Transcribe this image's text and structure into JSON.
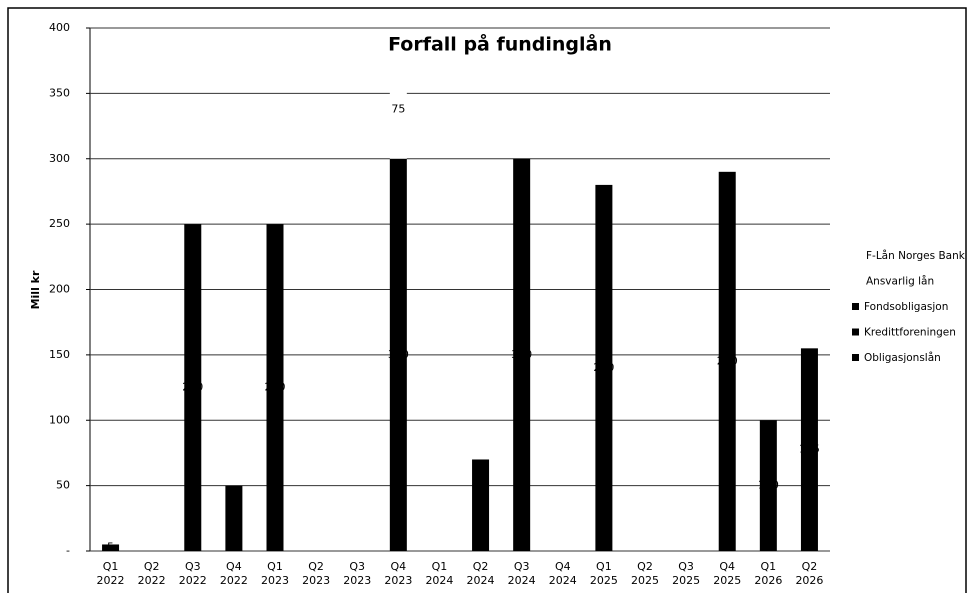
{
  "chart_data": {
    "type": "bar",
    "stacked": true,
    "title": "Forfall på fundinglån",
    "y_label": "Mill kr",
    "categories": [
      "Q1 2022",
      "Q2 2022",
      "Q3 2022",
      "Q4 2022",
      "Q1 2023",
      "Q2 2023",
      "Q3 2023",
      "Q4 2023",
      "Q1 2024",
      "Q2 2024",
      "Q3 2024",
      "Q4 2024",
      "Q1 2025",
      "Q2 2025",
      "Q3 2025",
      "Q4 2025",
      "Q1 2026",
      "Q2 2026"
    ],
    "series": [
      {
        "name": "F-Lån Norges Bank",
        "color": "#ffffff",
        "values": [
          null,
          null,
          null,
          null,
          null,
          null,
          null,
          75,
          null,
          null,
          null,
          null,
          null,
          null,
          null,
          null,
          null,
          null
        ]
      },
      {
        "name": "Ansvarlig lån",
        "color": "#ffffff",
        "values": [
          null,
          null,
          null,
          null,
          null,
          null,
          null,
          null,
          null,
          null,
          null,
          null,
          null,
          null,
          null,
          null,
          null,
          null
        ]
      },
      {
        "name": "Fondsobligasjon",
        "color": "#000000",
        "values": [
          null,
          null,
          null,
          null,
          null,
          null,
          null,
          null,
          null,
          null,
          null,
          null,
          null,
          null,
          null,
          null,
          null,
          null
        ]
      },
      {
        "name": "Kredittforeningen",
        "color": "#000000",
        "values": [
          null,
          null,
          null,
          null,
          null,
          null,
          null,
          null,
          null,
          null,
          null,
          null,
          null,
          null,
          null,
          null,
          null,
          null
        ]
      },
      {
        "name": "Obligasjonslån",
        "color": "#000000",
        "values": [
          5,
          null,
          250,
          50,
          250,
          null,
          null,
          300,
          null,
          70,
          300,
          null,
          280,
          null,
          null,
          290,
          100,
          155
        ]
      }
    ],
    "ylim": [
      0,
      400
    ],
    "yticks": [
      {
        "value": 0,
        "label": "-"
      },
      50,
      100,
      150,
      200,
      250,
      300,
      350,
      400
    ],
    "grid": true,
    "legend": "right",
    "data_labels": true
  }
}
